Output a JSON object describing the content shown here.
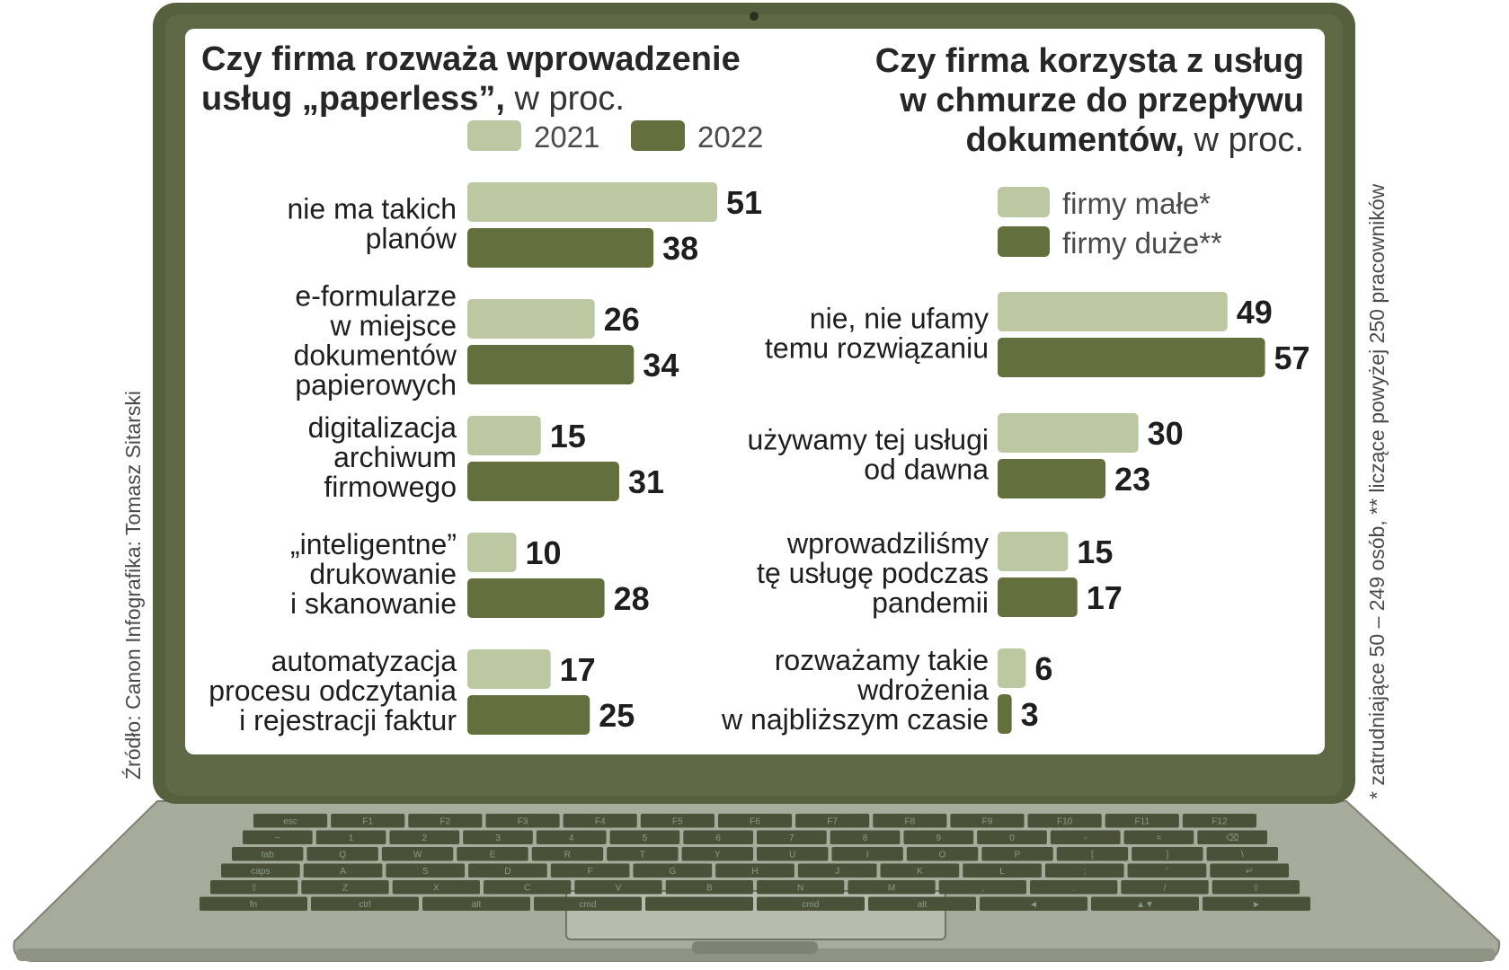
{
  "colors": {
    "light_bar": "#bbc8a2",
    "dark_bar": "#636f3d",
    "laptop_frame": "#56603f",
    "laptop_base": "#a3a89a",
    "screen_bg": "#ffffff"
  },
  "credits": {
    "source": "Źródło: Canon   Infografika: Tomasz Sitarski",
    "footnote": "* zatrudniające 50 – 249 osób, ** liczące powyżej 250 pracowników"
  },
  "keyboard": {
    "row1": [
      "esc",
      "F1",
      "F2",
      "F3",
      "F4",
      "F5",
      "F6",
      "F7",
      "F8",
      "F9",
      "F10",
      "F11",
      "F12"
    ],
    "row2": [
      "~",
      "1",
      "2",
      "3",
      "4",
      "5",
      "6",
      "7",
      "8",
      "9",
      "0",
      "-",
      "=",
      "⌫"
    ],
    "row3": [
      "tab",
      "Q",
      "W",
      "E",
      "R",
      "T",
      "Y",
      "U",
      "I",
      "O",
      "P",
      "[",
      "]",
      "\\"
    ],
    "row4": [
      "caps",
      "A",
      "S",
      "D",
      "F",
      "G",
      "H",
      "J",
      "K",
      "L",
      ";",
      "'",
      "↵"
    ],
    "row5": [
      "⇧",
      "Z",
      "X",
      "C",
      "V",
      "B",
      "N",
      "M",
      ",",
      ".",
      "/",
      "⇧"
    ],
    "row6": [
      "fn",
      "ctrl",
      "alt",
      "cmd",
      "",
      "cmd",
      "alt",
      "◄",
      "▲▼",
      "►"
    ]
  },
  "chart_data": [
    {
      "type": "bar",
      "orientation": "horizontal",
      "title_bold": "Czy firma rozważa wprowadzenie usług „paperless”,",
      "title_light": "w proc.",
      "title_lines": [
        {
          "bold": "Czy firma rozważa wprowadzenie",
          "light": ""
        },
        {
          "bold": "usług „paperless”,",
          "light": " w proc."
        }
      ],
      "legend_position": "top",
      "categories": [
        [
          "nie ma takich",
          "planów"
        ],
        [
          "e-formularze",
          "w miejsce",
          "dokumentów",
          "papierowych"
        ],
        [
          "digitalizacja",
          "archiwum",
          "firmowego"
        ],
        [
          "„inteligentne”",
          "drukowanie",
          "i skanowanie"
        ],
        [
          "automatyzacja",
          "procesu odczytania",
          "i rejestracji faktur"
        ]
      ],
      "series": [
        {
          "name": "2021",
          "values": [
            51,
            26,
            15,
            10,
            17
          ]
        },
        {
          "name": "2022",
          "values": [
            38,
            34,
            31,
            28,
            25
          ]
        }
      ],
      "xlim": [
        0,
        60
      ],
      "grid": false
    },
    {
      "type": "bar",
      "orientation": "horizontal",
      "title_bold": "Czy firma korzysta z usług w chmurze do przepływu dokumentów,",
      "title_light": "w proc.",
      "title_lines": [
        {
          "bold": "Czy firma korzysta z usług",
          "light": ""
        },
        {
          "bold": "w chmurze do przepływu",
          "light": ""
        },
        {
          "bold": "dokumentów,",
          "light": " w proc."
        }
      ],
      "legend_position": "top",
      "categories": [
        [
          "nie, nie ufamy",
          "temu rozwiązaniu"
        ],
        [
          "używamy tej usługi",
          "od dawna"
        ],
        [
          "wprowadziliśmy",
          "tę usługę podczas",
          "pandemii"
        ],
        [
          "rozważamy takie",
          "wdrożenia",
          "w najbliższym czasie"
        ]
      ],
      "series": [
        {
          "name": "firmy małe*",
          "values": [
            49,
            30,
            15,
            6
          ]
        },
        {
          "name": "firmy duże**",
          "values": [
            57,
            23,
            17,
            3
          ]
        }
      ],
      "xlim": [
        0,
        60
      ],
      "grid": false
    }
  ]
}
